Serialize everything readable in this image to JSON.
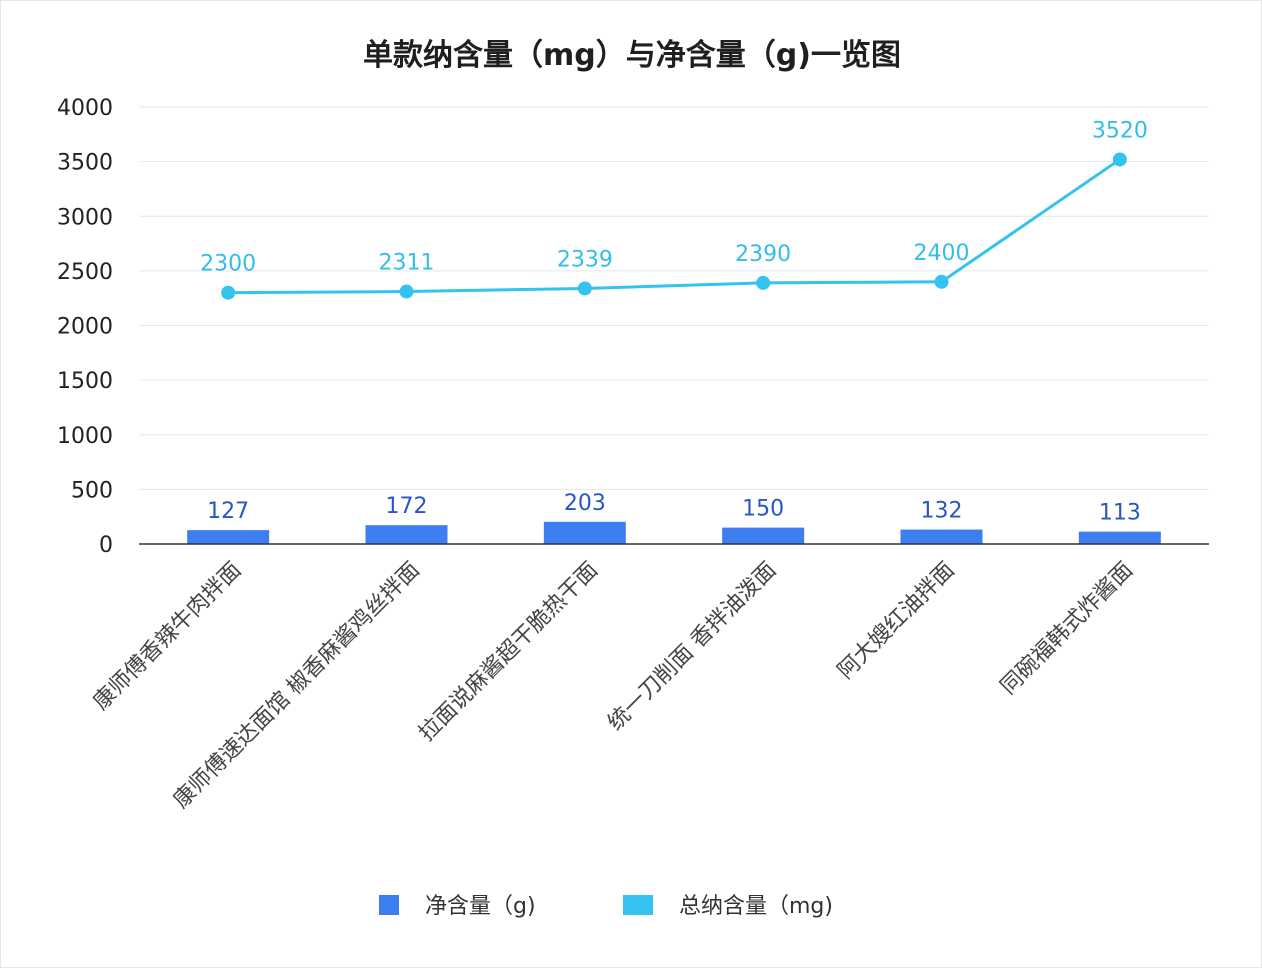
{
  "chart_data": {
    "type": "bar",
    "title": "单款纳含量（mg）与净含量（g)一览图",
    "categories": [
      "康师傅香辣牛肉拌面",
      "康师傅速达面馆 椒香麻酱鸡丝拌面",
      "拉面说麻酱超干脆热干面",
      "统一刀削面 香拌油泼面",
      "阿大嫂红油拌面",
      "同碗福韩式炸酱面"
    ],
    "ylim": [
      0,
      4000
    ],
    "yticks": [
      0,
      500,
      1000,
      1500,
      2000,
      2500,
      3000,
      3500,
      4000
    ],
    "grid": true,
    "legend_position": "bottom",
    "series": [
      {
        "name": "净含量（g)",
        "type": "bar",
        "color": "#3d7ff0",
        "label_color": "#2a55c7",
        "values": [
          127,
          172,
          203,
          150,
          132,
          113
        ]
      },
      {
        "name": "总纳含量（mg)",
        "type": "line",
        "color": "#34c3ee",
        "label_color": "#34bdea",
        "values": [
          2300,
          2311,
          2339,
          2390,
          2400,
          3520
        ]
      }
    ]
  }
}
